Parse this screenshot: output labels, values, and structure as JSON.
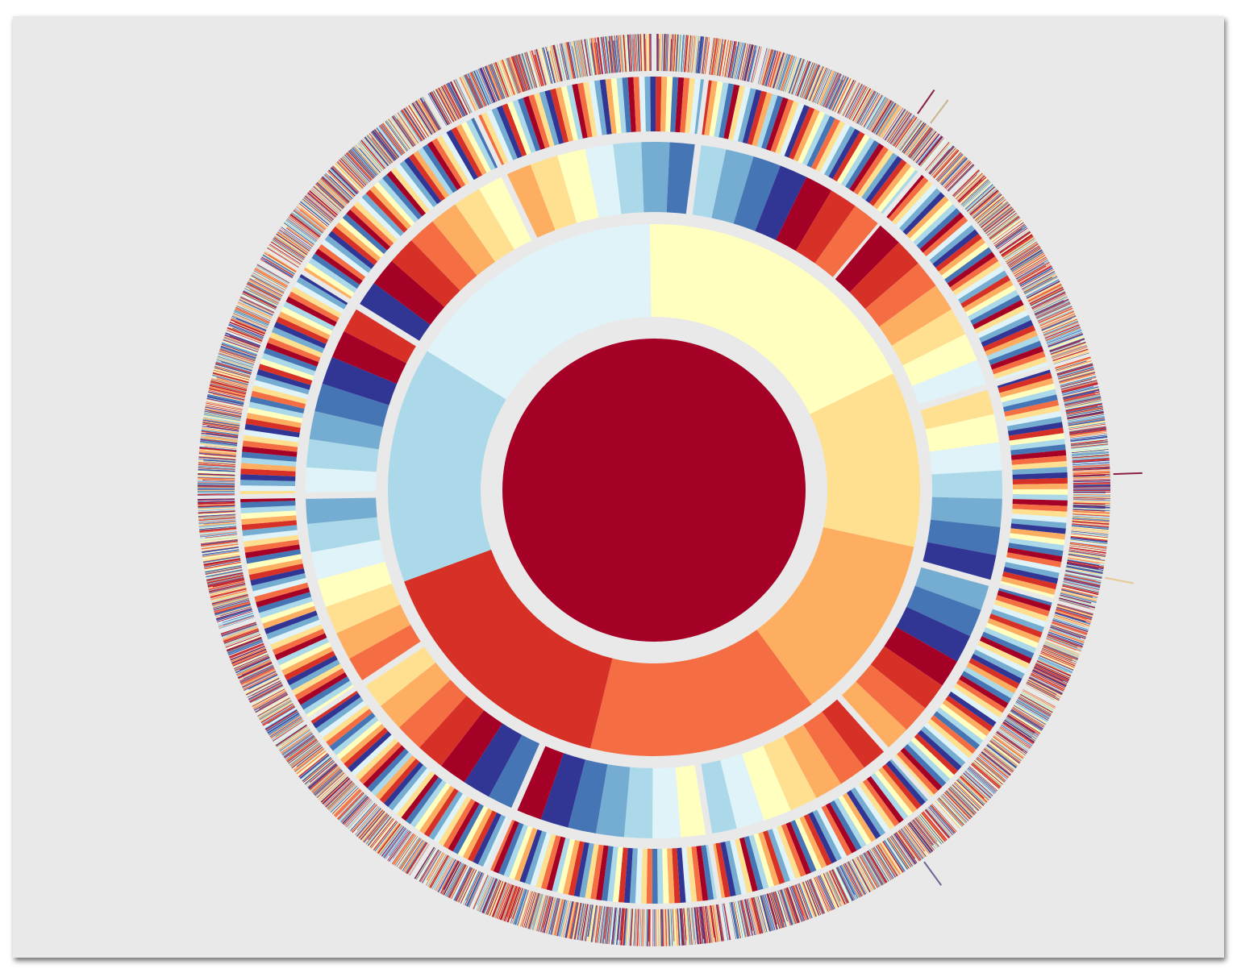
{
  "chart_data": {
    "type": "sunburst",
    "title": "",
    "palette": [
      "#a50026",
      "#d73027",
      "#f46d43",
      "#fdae61",
      "#fee090",
      "#ffffbf",
      "#e0f3f8",
      "#abd9e9",
      "#74add1",
      "#4575b4",
      "#313695"
    ],
    "background": "#e9e9ea",
    "gap_color": "#e9e9ea",
    "levels": [
      {
        "depth": 0,
        "nodes": [
          {
            "value": 1,
            "color": "#a50026"
          }
        ]
      },
      {
        "depth": 1,
        "start_angle_deg": 64,
        "nodes": [
          {
            "value": 26,
            "color": "#fee090"
          },
          {
            "value": 28,
            "color": "#fdae61"
          },
          {
            "value": 34,
            "color": "#f46d43"
          },
          {
            "value": 38,
            "color": "#d73027"
          },
          {
            "value": 35,
            "color": "#abd9e9"
          },
          {
            "value": 39,
            "color": "#e0f3f8"
          },
          {
            "value": 44,
            "color": "#ffffbf"
          }
        ]
      },
      {
        "depth": 2,
        "start_angle_deg": 40,
        "slices_per_parent": 7,
        "color_order": "red-to-blue"
      },
      {
        "depth": 3,
        "description_free": true,
        "slices_per_parent": 6
      },
      {
        "depth": 4,
        "slices_per_parent": 9,
        "fine_stripes": true
      }
    ],
    "outliers": [
      {
        "angle_deg": 35,
        "color": "#8a2040"
      },
      {
        "angle_deg": 37,
        "color": "#c8b48a"
      },
      {
        "angle_deg": 88,
        "color": "#8a2040"
      },
      {
        "angle_deg": 101,
        "color": "#e8c890"
      },
      {
        "angle_deg": 144,
        "color": "#6a6a90"
      }
    ]
  }
}
